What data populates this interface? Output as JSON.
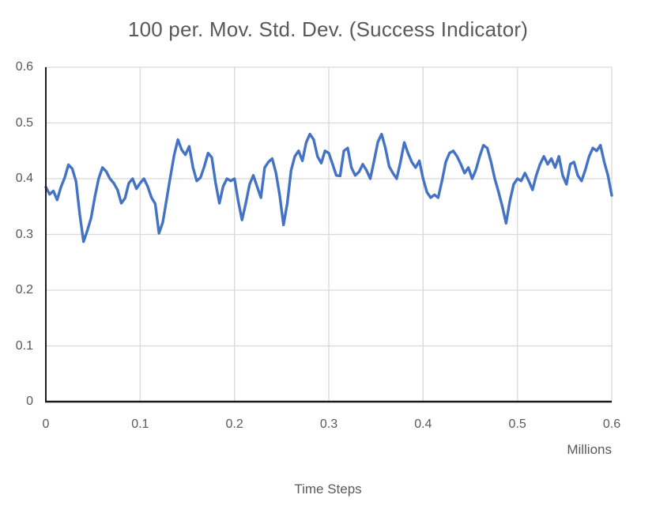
{
  "chart_data": {
    "type": "line",
    "title": "100 per. Mov. Std. Dev. (Success Indicator)",
    "xlabel": "Time Steps",
    "x_unit_label": "Millions",
    "ylabel": "",
    "xlim": [
      0,
      0.6
    ],
    "ylim": [
      0,
      0.6
    ],
    "x_tick_labels": [
      "0",
      "0.1",
      "0.2",
      "0.3",
      "0.4",
      "0.5",
      "0.6"
    ],
    "x_ticks": [
      0,
      0.1,
      0.2,
      0.3,
      0.4,
      0.5,
      0.6
    ],
    "y_tick_labels": [
      "0",
      "0.1",
      "0.2",
      "0.3",
      "0.4",
      "0.5",
      "0.6"
    ],
    "y_ticks": [
      0,
      0.1,
      0.2,
      0.3,
      0.4,
      0.5,
      0.6
    ],
    "grid": true,
    "legend": false,
    "series": [
      {
        "name": "100-period moving standard deviation of success indicator",
        "color": "#4472C4",
        "x_unit": "millions of time steps",
        "x_start": 0,
        "x_step": 0.004,
        "y": [
          0.385,
          0.372,
          0.378,
          0.362,
          0.385,
          0.402,
          0.425,
          0.418,
          0.395,
          0.335,
          0.287,
          0.307,
          0.33,
          0.368,
          0.4,
          0.42,
          0.413,
          0.4,
          0.392,
          0.38,
          0.356,
          0.365,
          0.392,
          0.4,
          0.382,
          0.392,
          0.4,
          0.386,
          0.366,
          0.355,
          0.302,
          0.322,
          0.362,
          0.403,
          0.442,
          0.47,
          0.452,
          0.443,
          0.458,
          0.42,
          0.396,
          0.402,
          0.422,
          0.446,
          0.438,
          0.392,
          0.356,
          0.386,
          0.4,
          0.396,
          0.4,
          0.36,
          0.326,
          0.356,
          0.39,
          0.406,
          0.386,
          0.366,
          0.42,
          0.43,
          0.436,
          0.41,
          0.37,
          0.317,
          0.356,
          0.415,
          0.44,
          0.45,
          0.432,
          0.465,
          0.48,
          0.47,
          0.44,
          0.428,
          0.45,
          0.446,
          0.426,
          0.406,
          0.405,
          0.45,
          0.455,
          0.42,
          0.406,
          0.412,
          0.426,
          0.415,
          0.4,
          0.432,
          0.466,
          0.48,
          0.455,
          0.422,
          0.41,
          0.4,
          0.43,
          0.465,
          0.446,
          0.43,
          0.42,
          0.432,
          0.4,
          0.376,
          0.366,
          0.371,
          0.366,
          0.396,
          0.43,
          0.446,
          0.45,
          0.44,
          0.426,
          0.41,
          0.42,
          0.4,
          0.416,
          0.44,
          0.46,
          0.455,
          0.43,
          0.4,
          0.376,
          0.35,
          0.32,
          0.36,
          0.39,
          0.4,
          0.396,
          0.41,
          0.396,
          0.38,
          0.406,
          0.426,
          0.44,
          0.426,
          0.436,
          0.42,
          0.44,
          0.406,
          0.39,
          0.426,
          0.43,
          0.406,
          0.396,
          0.416,
          0.44,
          0.455,
          0.45,
          0.46,
          0.43,
          0.406,
          0.37
        ]
      }
    ],
    "colors": {
      "line": "#4472C4",
      "gridline": "#D9D9D9",
      "axis": "#1a1a1a",
      "text": "#595959",
      "background": "#ffffff"
    }
  }
}
